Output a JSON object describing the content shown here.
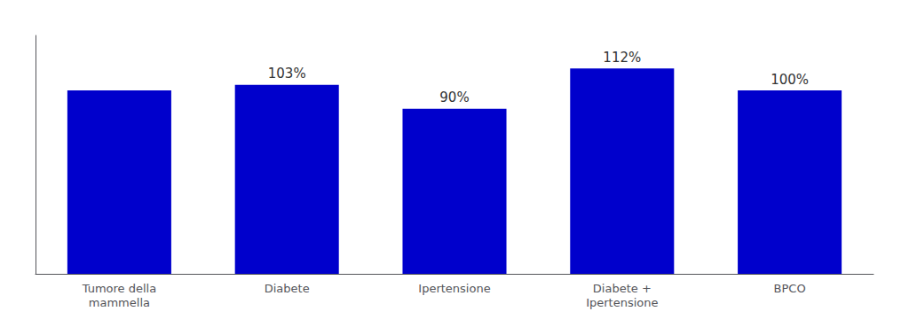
{
  "chart_data": {
    "type": "bar",
    "categories": [
      "Tumore della\nmammella",
      "Diabete",
      "Ipertensione",
      "Diabete +\nIpertensione",
      "BPCO"
    ],
    "values": [
      100,
      103,
      90,
      112,
      100
    ],
    "value_labels": [
      null,
      "103%",
      "90%",
      "112%",
      "100%"
    ],
    "data_labels": true,
    "color": "#0000CC",
    "ylim": [
      0,
      130
    ],
    "grid": false,
    "tick_labels": "x"
  }
}
